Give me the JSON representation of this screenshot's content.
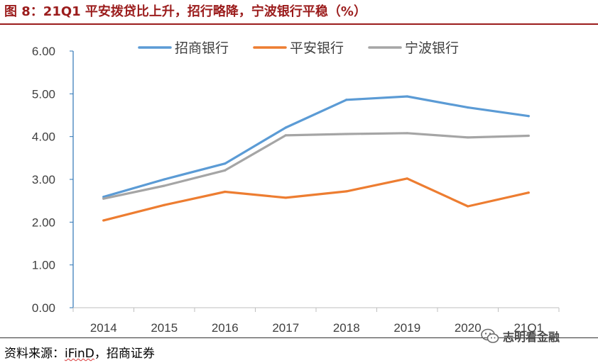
{
  "header": {
    "title": "图 8：21Q1 平安拨贷比上升，招行略降，宁波银行平稳（%）"
  },
  "footer": {
    "source_prefix": "资料来源：",
    "source_ifind": "iFinD",
    "source_suffix": "，招商证券"
  },
  "watermark": {
    "text": "志明看金融",
    "icon": "wechat-icon"
  },
  "colors": {
    "title": "#9b1c1c",
    "axis": "#2e75b6"
  },
  "chart_data": {
    "type": "line",
    "title": "",
    "xlabel": "",
    "ylabel": "",
    "categories": [
      "2014",
      "2015",
      "2016",
      "2017",
      "2018",
      "2019",
      "2020",
      "21Q1"
    ],
    "ylim": [
      0,
      6
    ],
    "yticks": [
      "0.00",
      "1.00",
      "2.00",
      "3.00",
      "4.00",
      "5.00",
      "6.00"
    ],
    "grid": false,
    "legend_position": "top",
    "series": [
      {
        "name": "招商银行",
        "color": "#5b9bd5",
        "values": [
          2.59,
          3.0,
          3.37,
          4.21,
          4.86,
          4.94,
          4.68,
          4.48
        ]
      },
      {
        "name": "平安银行",
        "color": "#ed7d31",
        "values": [
          2.04,
          2.4,
          2.71,
          2.57,
          2.72,
          3.02,
          2.37,
          2.69
        ]
      },
      {
        "name": "宁波银行",
        "color": "#a5a5a5",
        "values": [
          2.55,
          2.85,
          3.21,
          4.03,
          4.06,
          4.08,
          3.98,
          4.02
        ]
      }
    ]
  }
}
